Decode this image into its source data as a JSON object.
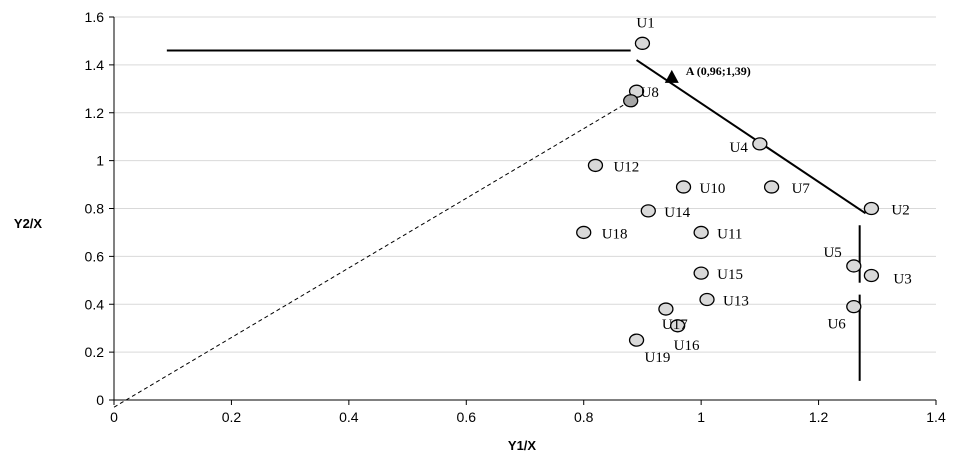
{
  "chart_data": {
    "type": "scatter",
    "title": "",
    "xlabel": "Y1/X",
    "ylabel": "Y2/X",
    "xlim": [
      0,
      1.4
    ],
    "ylim": [
      0,
      1.6
    ],
    "xticks": [
      "0",
      "0.2",
      "0.4",
      "0.6",
      "0.8",
      "1",
      "1.2",
      "1.4"
    ],
    "yticks": [
      "0",
      "0.2",
      "0.4",
      "0.6",
      "0.8",
      "1",
      "1.2",
      "1.4",
      "1.6"
    ],
    "grid": true,
    "legend": "none",
    "marker_fill": "#d9d9d9",
    "marker_fill_dark": "#a6a6a6",
    "points": [
      {
        "label": "U1",
        "x": 0.9,
        "y": 1.49
      },
      {
        "label": "U2",
        "x": 1.29,
        "y": 0.8
      },
      {
        "label": "U3",
        "x": 1.29,
        "y": 0.52
      },
      {
        "label": "U4",
        "x": 1.1,
        "y": 1.07
      },
      {
        "label": "U5",
        "x": 1.26,
        "y": 0.56
      },
      {
        "label": "U6",
        "x": 1.26,
        "y": 0.39
      },
      {
        "label": "U7",
        "x": 1.12,
        "y": 0.89
      },
      {
        "label": "U8",
        "x": 0.89,
        "y": 1.29
      },
      {
        "label": "U10",
        "x": 0.97,
        "y": 0.89
      },
      {
        "label": "U11",
        "x": 1.0,
        "y": 0.7
      },
      {
        "label": "U12",
        "x": 0.82,
        "y": 0.98
      },
      {
        "label": "U13",
        "x": 1.01,
        "y": 0.42
      },
      {
        "label": "U14",
        "x": 0.91,
        "y": 0.79
      },
      {
        "label": "U15",
        "x": 1.0,
        "y": 0.53
      },
      {
        "label": "U16",
        "x": 0.96,
        "y": 0.31
      },
      {
        "label": "U17",
        "x": 0.94,
        "y": 0.38
      },
      {
        "label": "U18",
        "x": 0.8,
        "y": 0.7
      },
      {
        "label": "U19",
        "x": 0.89,
        "y": 0.25
      },
      {
        "label": "",
        "x": 0.88,
        "y": 1.25,
        "dark": true
      }
    ],
    "annotation_point": {
      "label": "A (0,96;1,39)",
      "x": 0.95,
      "y": 1.35
    },
    "lines": [
      {
        "name": "top-horizontal",
        "x": [
          0.09,
          0.88
        ],
        "y": [
          1.46,
          1.46
        ],
        "style": "solid"
      },
      {
        "name": "frontier",
        "x": [
          0.89,
          1.28
        ],
        "y": [
          1.42,
          0.78
        ],
        "style": "solid"
      },
      {
        "name": "right-vertical-upper",
        "x": [
          1.27,
          1.27
        ],
        "y": [
          0.73,
          0.49
        ],
        "style": "solid"
      },
      {
        "name": "right-vertical-lower",
        "x": [
          1.27,
          1.27
        ],
        "y": [
          0.44,
          0.08
        ],
        "style": "solid"
      },
      {
        "name": "ray-from-origin",
        "x": [
          0.0,
          0.88
        ],
        "y": [
          -0.03,
          1.25
        ],
        "style": "dashed"
      }
    ]
  }
}
